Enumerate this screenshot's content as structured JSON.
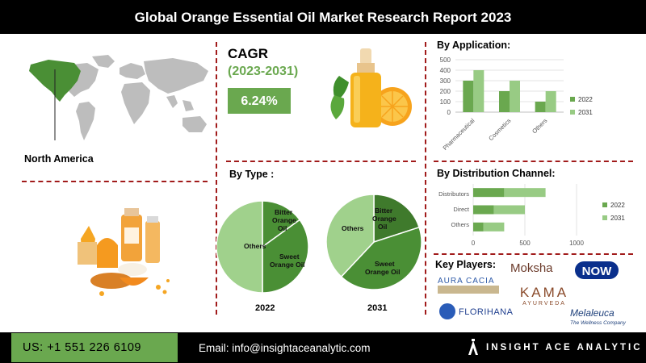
{
  "header": {
    "title": "Global Orange Essential Oil Market Research Report 2023"
  },
  "region": {
    "label": "North America"
  },
  "cagr": {
    "label": "CAGR",
    "period": "(2023-2031)",
    "value": "6.24%"
  },
  "colors": {
    "dark_green": "#6aa84f",
    "light_green": "#98cb84",
    "pie_dark": "#4a8f35",
    "pie_light": "#a0d18c",
    "orange": "#f5a623",
    "divider": "#a11b1b"
  },
  "chart_data": [
    {
      "type": "bar",
      "title": "By Application:",
      "categories": [
        "Pharmaceutical",
        "Cosmetics",
        "Others"
      ],
      "series": [
        {
          "name": "2022",
          "values": [
            300,
            200,
            100
          ]
        },
        {
          "name": "2031",
          "values": [
            400,
            300,
            200
          ]
        }
      ],
      "yticks": [
        "0",
        "100",
        "200",
        "300",
        "400",
        "500"
      ],
      "ylim": [
        0,
        500
      ],
      "legend": "right"
    },
    {
      "type": "bar",
      "orientation": "horizontal",
      "title": "By Distribution Channel:",
      "categories": [
        "Distributors",
        "Direct",
        "Others"
      ],
      "series": [
        {
          "name": "2022",
          "values": [
            300,
            200,
            100
          ]
        },
        {
          "name": "2031",
          "values": [
            400,
            300,
            200
          ]
        }
      ],
      "xticks": [
        "0",
        "500",
        "1000"
      ],
      "xlim": [
        0,
        1000
      ],
      "legend": "right"
    },
    {
      "type": "pie",
      "title": "By Type :",
      "charts": [
        {
          "label": "2022",
          "slices": [
            {
              "name": "Bitter Orange Oil",
              "value": 15
            },
            {
              "name": "Sweet Orange Oil",
              "value": 35
            },
            {
              "name": "Others",
              "value": 50
            }
          ]
        },
        {
          "label": "2031",
          "slices": [
            {
              "name": "Bitter Orange Oil",
              "value": 20
            },
            {
              "name": "Sweet Orange Oil",
              "value": 42
            },
            {
              "name": "Others",
              "value": 38
            }
          ]
        }
      ]
    }
  ],
  "labels": {
    "pie_bitter": [
      "Bitter",
      "Orange",
      "Oil"
    ],
    "pie_sweet": [
      "Sweet",
      "Orange Oil"
    ],
    "pie_others": "Others"
  },
  "key_players": {
    "title": "Key Players:",
    "brands": [
      "Moksha",
      "NOW",
      "AURA CACIA",
      "KAMA",
      "AYURVEDA",
      "FLORIHANA",
      "Melaleuca",
      "The Wellness Company"
    ]
  },
  "footer": {
    "phone": "US: +1 551 226 6109",
    "email": "Email: info@insightaceanalytic.com",
    "brand": "INSIGHT ACE ANALYTIC"
  }
}
